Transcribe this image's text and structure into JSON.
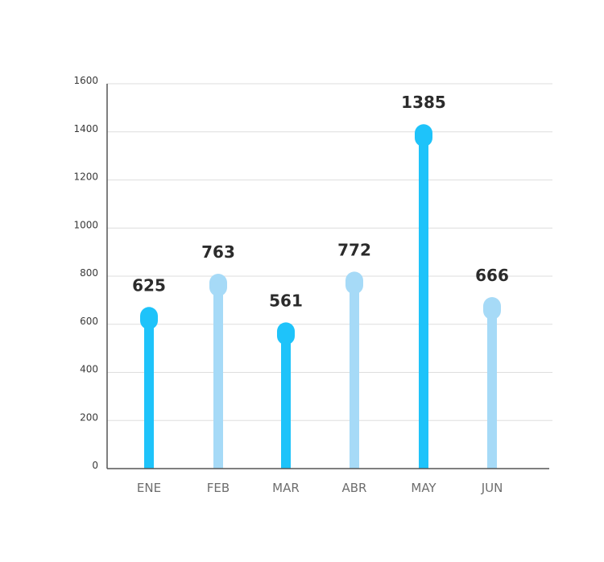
{
  "chart_data": {
    "type": "bar",
    "categories": [
      "ENE",
      "FEB",
      "MAR",
      "ABR",
      "MAY",
      "JUN"
    ],
    "values": [
      625,
      763,
      561,
      772,
      1385,
      666
    ],
    "data_labels": [
      "625",
      "763",
      "561",
      "772",
      "1385",
      "666"
    ],
    "y_ticks": [
      "0",
      "200",
      "400",
      "600",
      "800",
      "1000",
      "1200",
      "1400",
      "1600"
    ],
    "ylim": [
      0,
      1600
    ],
    "grid": true,
    "legend": "none",
    "title": "",
    "xlabel": "",
    "ylabel": "",
    "colors": [
      "#1ec3fa",
      "#a6daf7",
      "#1ec3fa",
      "#a6daf7",
      "#1ec3fa",
      "#a6daf7"
    ],
    "grid_color": "#dedede",
    "axis_color": "#555555"
  }
}
